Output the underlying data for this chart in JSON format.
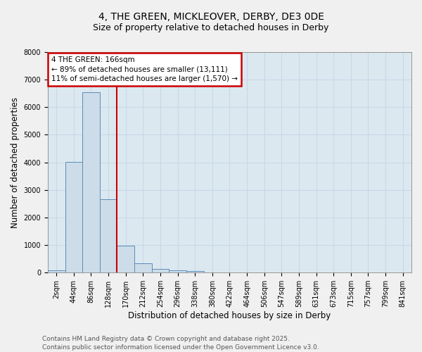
{
  "title": "4, THE GREEN, MICKLEOVER, DERBY, DE3 0DE",
  "subtitle": "Size of property relative to detached houses in Derby",
  "xlabel": "Distribution of detached houses by size in Derby",
  "ylabel": "Number of detached properties",
  "bar_labels": [
    "2sqm",
    "44sqm",
    "86sqm",
    "128sqm",
    "170sqm",
    "212sqm",
    "254sqm",
    "296sqm",
    "338sqm",
    "380sqm",
    "422sqm",
    "464sqm",
    "506sqm",
    "547sqm",
    "589sqm",
    "631sqm",
    "673sqm",
    "715sqm",
    "757sqm",
    "799sqm",
    "841sqm"
  ],
  "bar_values": [
    70,
    4020,
    6540,
    2650,
    980,
    340,
    130,
    70,
    50,
    0,
    0,
    0,
    0,
    0,
    0,
    0,
    0,
    0,
    0,
    0,
    0
  ],
  "bar_color": "#ccdce8",
  "bar_edge_color": "#5b8db8",
  "ylim": [
    0,
    8000
  ],
  "yticks": [
    0,
    1000,
    2000,
    3000,
    4000,
    5000,
    6000,
    7000,
    8000
  ],
  "red_line_idx": 3.5,
  "annotation_title": "4 THE GREEN: 166sqm",
  "annotation_line1": "← 89% of detached houses are smaller (13,111)",
  "annotation_line2": "11% of semi-detached houses are larger (1,570) →",
  "annotation_box_color": "#ffffff",
  "annotation_border_color": "#cc0000",
  "grid_color": "#c8d8e8",
  "plot_bg_color": "#dce8f0",
  "fig_bg_color": "#f0f0f0",
  "footer_line1": "Contains HM Land Registry data © Crown copyright and database right 2025.",
  "footer_line2": "Contains public sector information licensed under the Open Government Licence v3.0.",
  "title_fontsize": 10,
  "subtitle_fontsize": 9,
  "tick_fontsize": 7,
  "axis_label_fontsize": 8.5,
  "annotation_fontsize": 7.5,
  "footer_fontsize": 6.5
}
